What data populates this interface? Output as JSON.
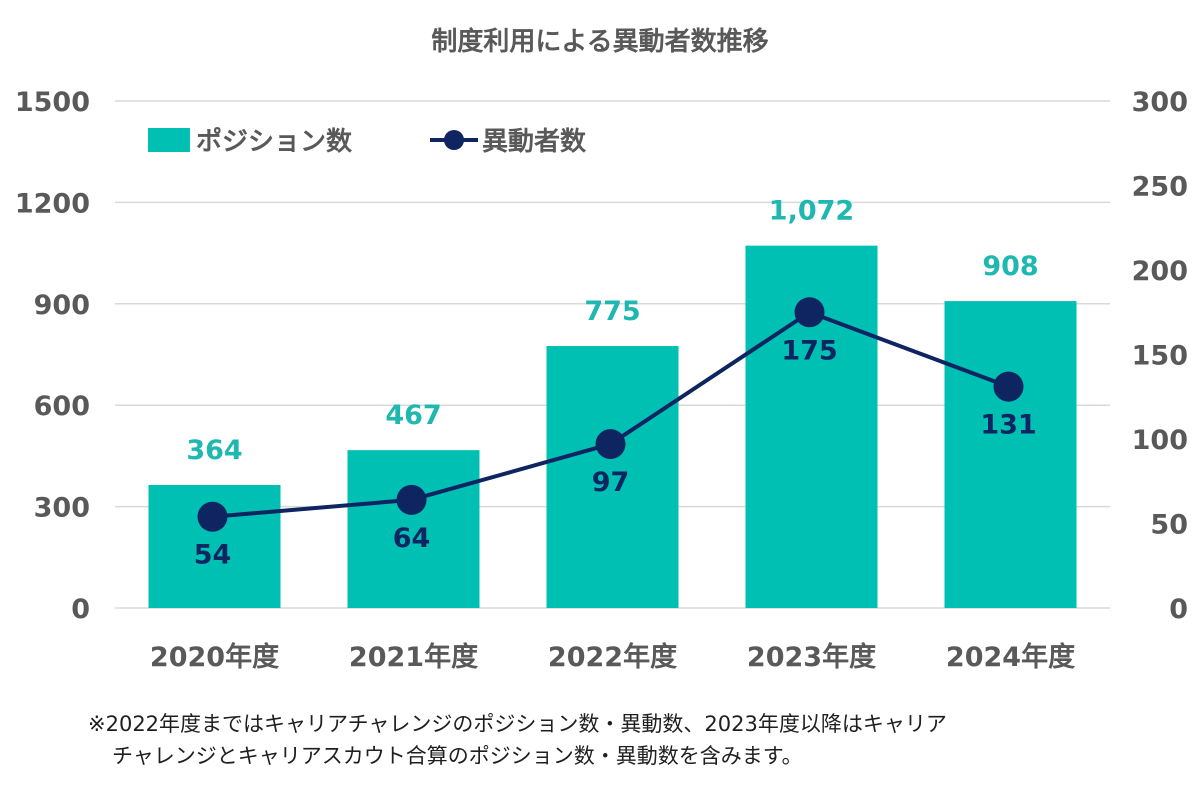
{
  "chart_data": {
    "type": "bar",
    "title": "制度利用による異動者数推移",
    "categories": [
      "2020年度",
      "2021年度",
      "2022年度",
      "2023年度",
      "2024年度"
    ],
    "series": [
      {
        "name": "ポジション数",
        "kind": "bar",
        "axis": "left",
        "values": [
          364,
          467,
          775,
          1072,
          908
        ],
        "labels": [
          "364",
          "467",
          "775",
          "1,072",
          "908"
        ]
      },
      {
        "name": "異動者数",
        "kind": "line",
        "axis": "right",
        "values": [
          54,
          64,
          97,
          175,
          131
        ],
        "labels": [
          "54",
          "64",
          "97",
          "175",
          "131"
        ]
      }
    ],
    "left_axis": {
      "min": 0,
      "max": 1500,
      "ticks": [
        0,
        300,
        600,
        900,
        1200,
        1500
      ]
    },
    "right_axis": {
      "min": 0,
      "max": 300,
      "ticks": [
        0,
        50,
        100,
        150,
        200,
        250,
        300
      ]
    },
    "legend_position": "top-left",
    "grid": true,
    "colors": {
      "bar": "#00BFB3",
      "bar_label": "#1FB8B0",
      "line": "#0E2562",
      "axis_text": "#595959",
      "grid": "#D9D9D9"
    }
  },
  "footnote": {
    "line1": "※2022年度まではキャリアチャレンジのポジション数・異動数、2023年度以降はキャリア",
    "line2": "チャレンジとキャリアスカウト合算のポジション数・異動数を含みます。"
  }
}
